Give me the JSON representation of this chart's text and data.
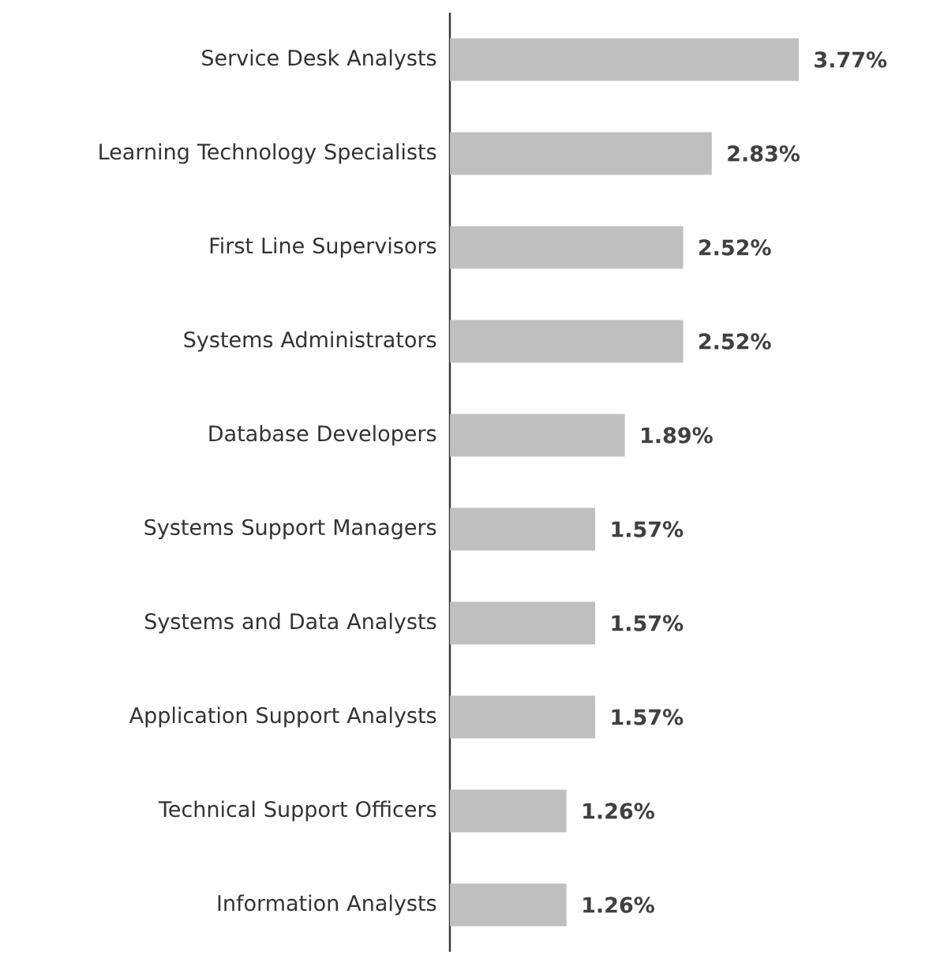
{
  "chart_data": {
    "type": "bar",
    "orientation": "horizontal",
    "color": "#bfbfbf",
    "categories": [
      "Service Desk Analysts",
      "Learning Technology Specialists",
      "First Line Supervisors",
      "Systems Administrators",
      "Database Developers",
      "Systems Support Managers",
      "Systems and Data Analysts",
      "Application Support Analysts",
      "Technical Support Officers",
      "Information Analysts"
    ],
    "values": [
      3.77,
      2.83,
      2.52,
      2.52,
      1.89,
      1.57,
      1.57,
      1.57,
      1.26,
      1.26
    ],
    "value_labels": [
      "3.77%",
      "2.83%",
      "2.52%",
      "2.52%",
      "1.89%",
      "1.57%",
      "1.57%",
      "1.57%",
      "1.26%",
      "1.26%"
    ]
  }
}
